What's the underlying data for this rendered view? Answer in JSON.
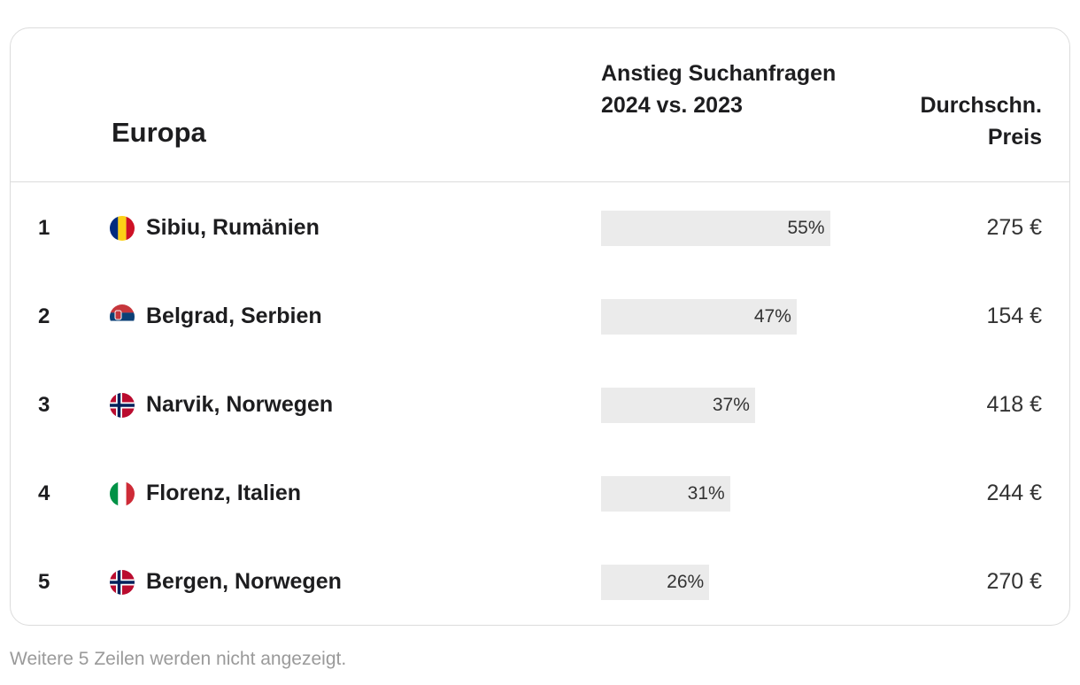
{
  "table": {
    "headers": [
      "Europa",
      "Anstieg Suchanfragen 2024 vs. 2023",
      "Durchschn. Preis"
    ],
    "rows": [
      {
        "rank": "1",
        "name": "Sibiu, Rumänien",
        "increase": 55,
        "increase_label": "55%",
        "price": "275 €"
      },
      {
        "rank": "2",
        "name": "Belgrad, Serbien",
        "increase": 47,
        "increase_label": "47%",
        "price": "154 €"
      },
      {
        "rank": "3",
        "name": "Narvik, Norwegen",
        "increase": 37,
        "increase_label": "37%",
        "price": "418 €"
      },
      {
        "rank": "4",
        "name": "Florenz, Italien",
        "increase": 31,
        "increase_label": "31%",
        "price": "244 €"
      },
      {
        "rank": "5",
        "name": "Bergen, Norwegen",
        "increase": 26,
        "increase_label": "26%",
        "price": "270 €"
      }
    ]
  },
  "footer": "Weitere 5 Zeilen werden nicht angezeigt."
}
